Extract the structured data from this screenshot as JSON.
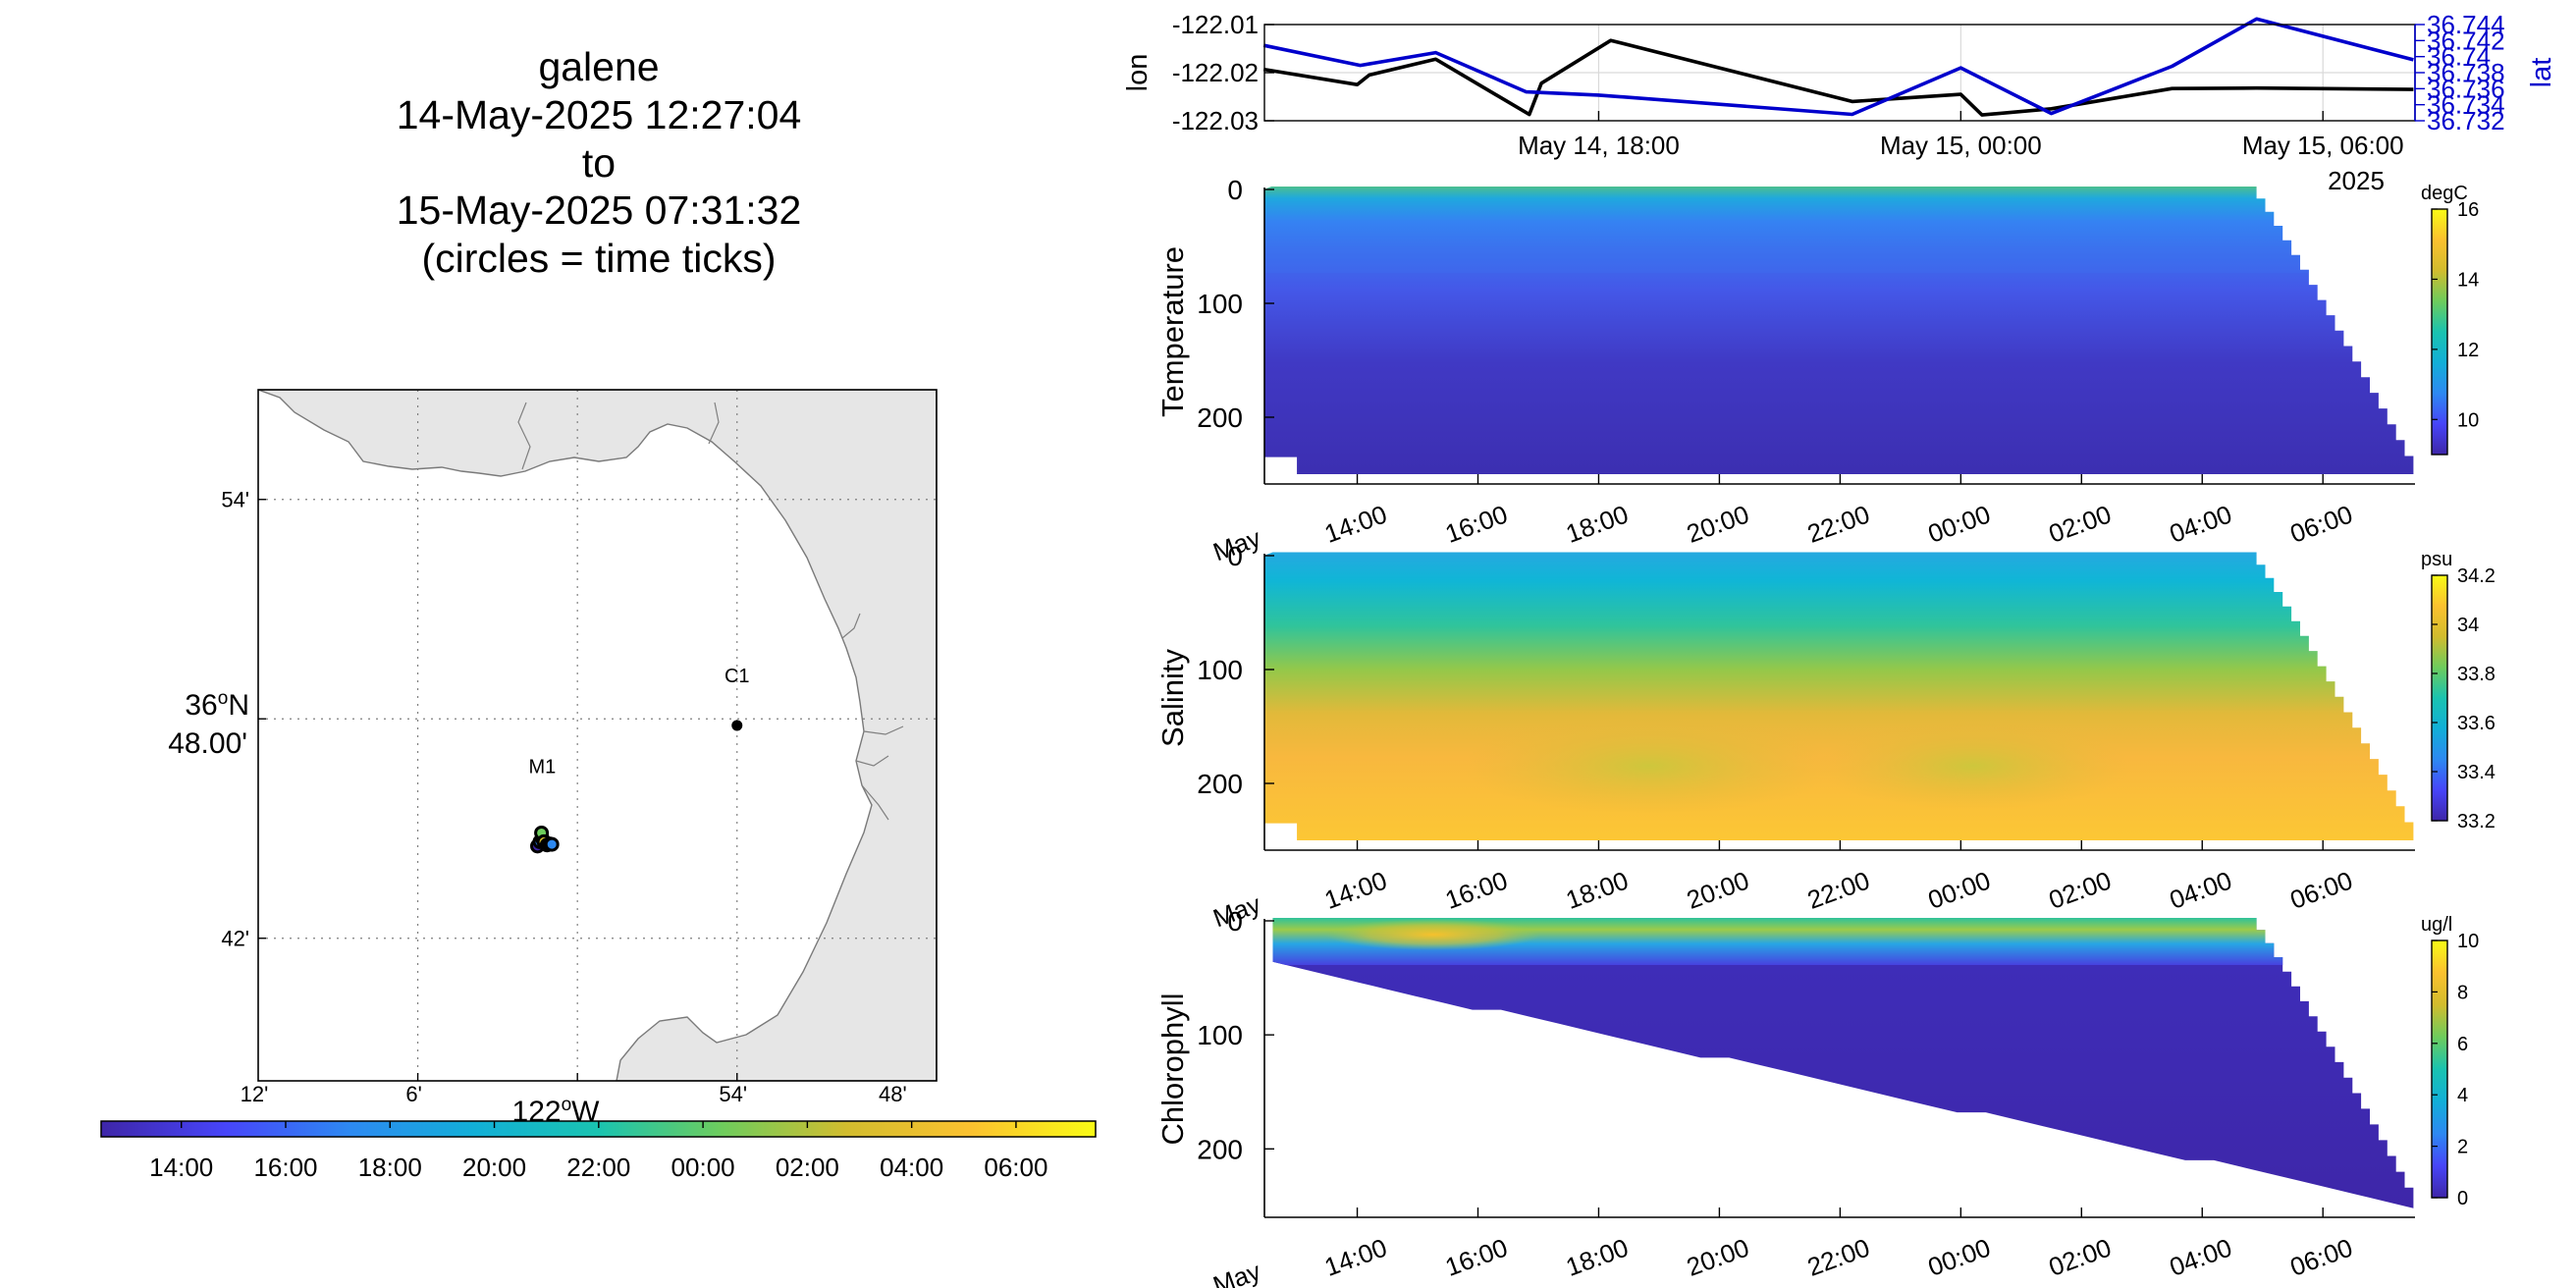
{
  "title": {
    "glider": "galene",
    "start": "14-May-2025 12:27:04",
    "to": "to",
    "end": "15-May-2025 07:31:32",
    "note": "(circles = time ticks)"
  },
  "map": {
    "stations": [
      {
        "name": "C1",
        "lon": -121.9,
        "lat": 36.797
      },
      {
        "name": "M1",
        "lon": -122.022,
        "lat": 36.7475
      }
    ],
    "lon_ticks": [
      "12'",
      "6'",
      "54'",
      "48'"
    ],
    "lon_degree_label": "122",
    "lon_hemisphere": "W",
    "lat_ticks": [
      "54'",
      "42'"
    ],
    "lat_degree_label": "36",
    "lat_hemisphere": "N",
    "lat_minutes_label": "48.00'",
    "degree_symbol": "o",
    "land_color": "#e6e6e6",
    "track_points": [
      {
        "lon": -122.025,
        "lat": 36.742
      },
      {
        "lon": -122.0235,
        "lat": 36.744
      },
      {
        "lon": -122.022,
        "lat": 36.7455
      },
      {
        "lon": -122.0225,
        "lat": 36.748
      },
      {
        "lon": -122.021,
        "lat": 36.744
      },
      {
        "lon": -122.019,
        "lat": 36.7425
      },
      {
        "lon": -122.0175,
        "lat": 36.743
      },
      {
        "lon": -122.016,
        "lat": 36.7428
      }
    ],
    "colorbar_ticks": [
      "14:00",
      "16:00",
      "18:00",
      "20:00",
      "22:00",
      "00:00",
      "02:00",
      "04:00",
      "06:00"
    ]
  },
  "chart_data": [
    {
      "type": "line",
      "title": "",
      "xlabel": "",
      "ylabel": "lon",
      "y2label": "lat",
      "x_ticks": [
        "May 14, 18:00",
        "May 15, 00:00",
        "May 15, 06:00"
      ],
      "x_year_label": "2025",
      "y_ticks": [
        "-122.01",
        "-122.02",
        "-122.03"
      ],
      "y2_ticks": [
        "36.744",
        "36.742",
        "36.74",
        "36.738",
        "36.736",
        "36.734",
        "36.732"
      ],
      "ylim": [
        -122.03,
        -122.01
      ],
      "y2lim": [
        36.732,
        36.744
      ],
      "series": [
        {
          "axis": "left",
          "color": "#000000",
          "points": [
            [
              12.45,
              -122.0193
            ],
            [
              14.0,
              -122.0225
            ],
            [
              14.2,
              -122.0205
            ],
            [
              15.3,
              -122.0172
            ],
            [
              16.85,
              -122.0287
            ],
            [
              17.05,
              -122.0222
            ],
            [
              18.2,
              -122.0133
            ],
            [
              22.2,
              -122.026
            ],
            [
              24.0,
              -122.0245
            ],
            [
              24.35,
              -122.0288
            ],
            [
              25.5,
              -122.0275
            ],
            [
              27.5,
              -122.0233
            ],
            [
              28.9,
              -122.0232
            ],
            [
              31.5,
              -122.0235
            ]
          ]
        },
        {
          "axis": "right",
          "color": "#0000cc",
          "points": [
            [
              12.45,
              36.7414
            ],
            [
              14.05,
              36.7389
            ],
            [
              15.3,
              36.7405
            ],
            [
              16.8,
              36.7356
            ],
            [
              18.0,
              36.7352
            ],
            [
              22.2,
              36.7328
            ],
            [
              24.0,
              36.7386
            ],
            [
              25.5,
              36.7329
            ],
            [
              27.5,
              36.7388
            ],
            [
              28.9,
              36.7447
            ],
            [
              31.5,
              36.7396
            ]
          ]
        }
      ]
    },
    {
      "type": "heatmap",
      "title": "",
      "xlabel": "",
      "ylabel": "Temperature",
      "units": "degC",
      "clim": [
        9,
        16
      ],
      "colorbar_ticks": [
        "16",
        "14",
        "12",
        "10"
      ],
      "y_ticks": [
        "0",
        "100",
        "200"
      ],
      "x_ticks": [
        "May",
        "14:00",
        "16:00",
        "18:00",
        "20:00",
        "22:00",
        "00:00",
        "02:00",
        "04:00",
        "06:00"
      ]
    },
    {
      "type": "heatmap",
      "title": "",
      "xlabel": "",
      "ylabel": "Salinity",
      "units": "psu",
      "clim": [
        33.2,
        34.2
      ],
      "colorbar_ticks": [
        "34.2",
        "34",
        "33.8",
        "33.6",
        "33.4",
        "33.2"
      ],
      "y_ticks": [
        "0",
        "100",
        "200"
      ],
      "x_ticks": [
        "May",
        "14:00",
        "16:00",
        "18:00",
        "20:00",
        "22:00",
        "00:00",
        "02:00",
        "04:00",
        "06:00"
      ]
    },
    {
      "type": "heatmap",
      "title": "",
      "xlabel": "",
      "ylabel": "Chlorophyll",
      "units": "ug/l",
      "clim": [
        0,
        10
      ],
      "colorbar_ticks": [
        "10",
        "8",
        "6",
        "4",
        "2",
        "0"
      ],
      "y_ticks": [
        "0",
        "100",
        "200"
      ],
      "x_ticks": [
        "May",
        "14:00",
        "16:00",
        "18:00",
        "20:00",
        "22:00",
        "00:00",
        "02:00",
        "04:00",
        "06:00"
      ]
    }
  ]
}
